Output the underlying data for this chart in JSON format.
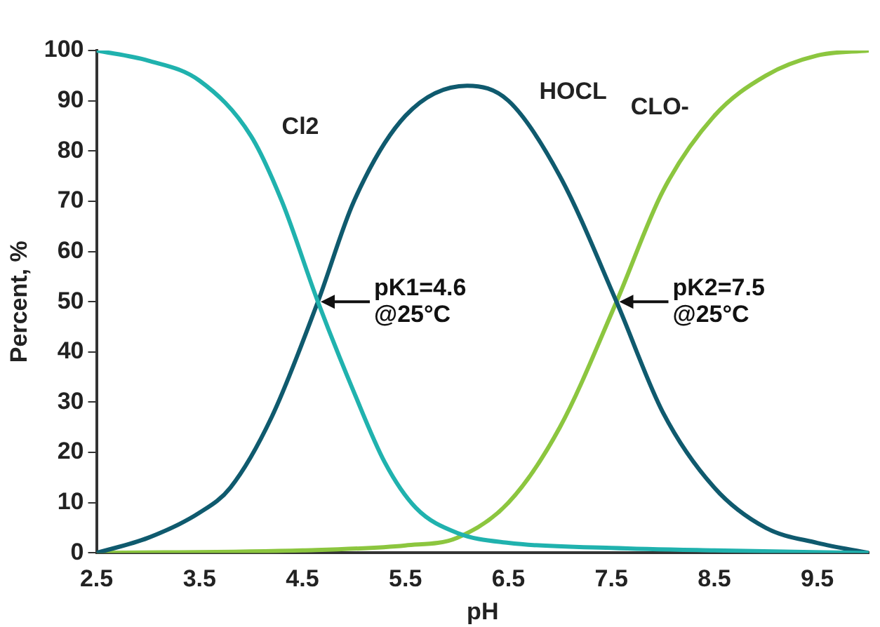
{
  "chart_data": {
    "type": "line",
    "xlabel": "pH",
    "ylabel": "Percent, %",
    "xlim": [
      2.5,
      10
    ],
    "xticks": [
      2.5,
      3.5,
      4.5,
      5.5,
      6.5,
      7.5,
      8.5,
      9.5
    ],
    "ylim": [
      0,
      100
    ],
    "yticks": [
      0,
      10,
      20,
      30,
      40,
      50,
      60,
      70,
      80,
      90,
      100
    ],
    "grid": false,
    "legend": false,
    "marker": "none",
    "line_style": "solid",
    "series": [
      {
        "name": "Cl2",
        "color": "#20b2ae",
        "x": [
          2.5,
          3.0,
          3.5,
          4.0,
          4.3,
          4.65,
          5.0,
          5.3,
          5.6,
          6.0,
          6.5,
          7.5,
          8.5,
          10
        ],
        "values": [
          100,
          98,
          94,
          83,
          70,
          50,
          32,
          18,
          9,
          4,
          2,
          1,
          0.5,
          0
        ]
      },
      {
        "name": "HOCL",
        "color": "#0f5a6e",
        "x": [
          2.5,
          3.0,
          3.5,
          3.8,
          4.2,
          4.65,
          5.0,
          5.5,
          6.1,
          6.5,
          7.0,
          7.55,
          8.0,
          8.5,
          9.0,
          9.5,
          10
        ],
        "values": [
          0,
          3,
          8,
          13,
          27,
          50,
          70,
          87,
          93,
          90,
          75,
          50,
          28,
          13,
          5,
          2,
          0
        ]
      },
      {
        "name": "CLO-",
        "color": "#8cc63f",
        "x": [
          2.5,
          4.5,
          5.5,
          6.0,
          6.5,
          7.0,
          7.55,
          8.0,
          8.5,
          9.0,
          9.5,
          10
        ],
        "values": [
          0,
          0.5,
          1.5,
          3,
          10,
          25,
          50,
          72,
          87,
          95,
          99,
          100
        ]
      }
    ],
    "annotations": [
      {
        "text": "pK1=4.6\n@25°C",
        "x": 4.65,
        "y": 50
      },
      {
        "text": "pK2=7.5\n@25°C",
        "x": 7.55,
        "y": 50
      }
    ]
  }
}
